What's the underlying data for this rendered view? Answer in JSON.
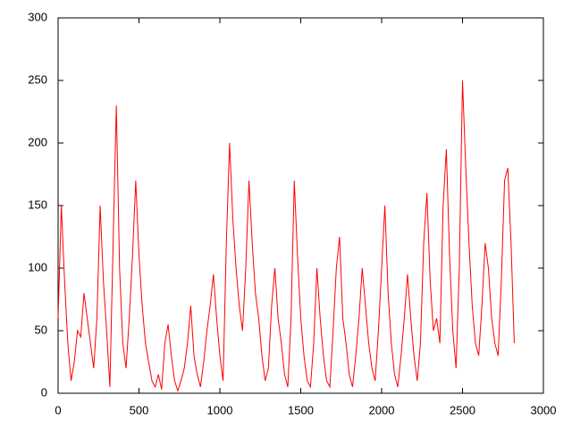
{
  "chart_data": {
    "type": "line",
    "x": [
      0,
      20,
      40,
      60,
      80,
      100,
      120,
      140,
      160,
      180,
      200,
      220,
      240,
      260,
      280,
      300,
      320,
      340,
      360,
      380,
      400,
      420,
      440,
      460,
      480,
      500,
      520,
      540,
      560,
      580,
      600,
      620,
      640,
      660,
      680,
      700,
      720,
      740,
      760,
      780,
      800,
      820,
      840,
      860,
      880,
      900,
      920,
      940,
      960,
      980,
      1000,
      1020,
      1040,
      1060,
      1080,
      1100,
      1120,
      1140,
      1160,
      1180,
      1200,
      1220,
      1240,
      1260,
      1280,
      1300,
      1320,
      1340,
      1360,
      1380,
      1400,
      1420,
      1440,
      1460,
      1480,
      1500,
      1520,
      1540,
      1560,
      1580,
      1600,
      1620,
      1640,
      1660,
      1680,
      1700,
      1720,
      1740,
      1760,
      1780,
      1800,
      1820,
      1840,
      1860,
      1880,
      1900,
      1920,
      1940,
      1960,
      1980,
      2000,
      2020,
      2040,
      2060,
      2080,
      2100,
      2120,
      2140,
      2160,
      2180,
      2200,
      2220,
      2240,
      2260,
      2280,
      2300,
      2320,
      2340,
      2360,
      2380,
      2400,
      2420,
      2440,
      2460,
      2480,
      2500,
      2520,
      2540,
      2560,
      2580,
      2600,
      2620,
      2640,
      2660,
      2680,
      2700,
      2720,
      2740,
      2760,
      2780,
      2800,
      2820
    ],
    "series": [
      {
        "color": "#ff0000",
        "values": [
          60,
          150,
          90,
          40,
          10,
          25,
          50,
          45,
          80,
          60,
          40,
          20,
          60,
          150,
          90,
          50,
          5,
          120,
          230,
          100,
          40,
          20,
          60,
          110,
          170,
          110,
          70,
          40,
          25,
          10,
          5,
          15,
          3,
          40,
          55,
          30,
          10,
          2,
          10,
          20,
          40,
          70,
          30,
          15,
          5,
          25,
          50,
          70,
          95,
          60,
          30,
          10,
          120,
          200,
          140,
          100,
          70,
          50,
          100,
          170,
          120,
          80,
          60,
          30,
          10,
          20,
          70,
          100,
          60,
          40,
          15,
          5,
          60,
          170,
          110,
          60,
          30,
          10,
          5,
          40,
          100,
          60,
          30,
          10,
          5,
          50,
          100,
          125,
          60,
          40,
          15,
          5,
          30,
          60,
          100,
          70,
          40,
          20,
          10,
          50,
          100,
          150,
          80,
          40,
          15,
          5,
          30,
          60,
          95,
          60,
          30,
          10,
          40,
          120,
          160,
          90,
          50,
          60,
          40,
          150,
          195,
          110,
          50,
          20,
          100,
          250,
          180,
          120,
          70,
          40,
          30,
          70,
          120,
          100,
          60,
          40,
          30,
          90,
          170,
          180,
          120,
          40
        ]
      }
    ],
    "xlim": [
      0,
      3000
    ],
    "xticks": [
      0,
      500,
      1000,
      1500,
      2000,
      2500,
      3000
    ],
    "ylim": [
      0,
      300
    ],
    "yticks": [
      0,
      50,
      100,
      150,
      200,
      250,
      300
    ]
  }
}
